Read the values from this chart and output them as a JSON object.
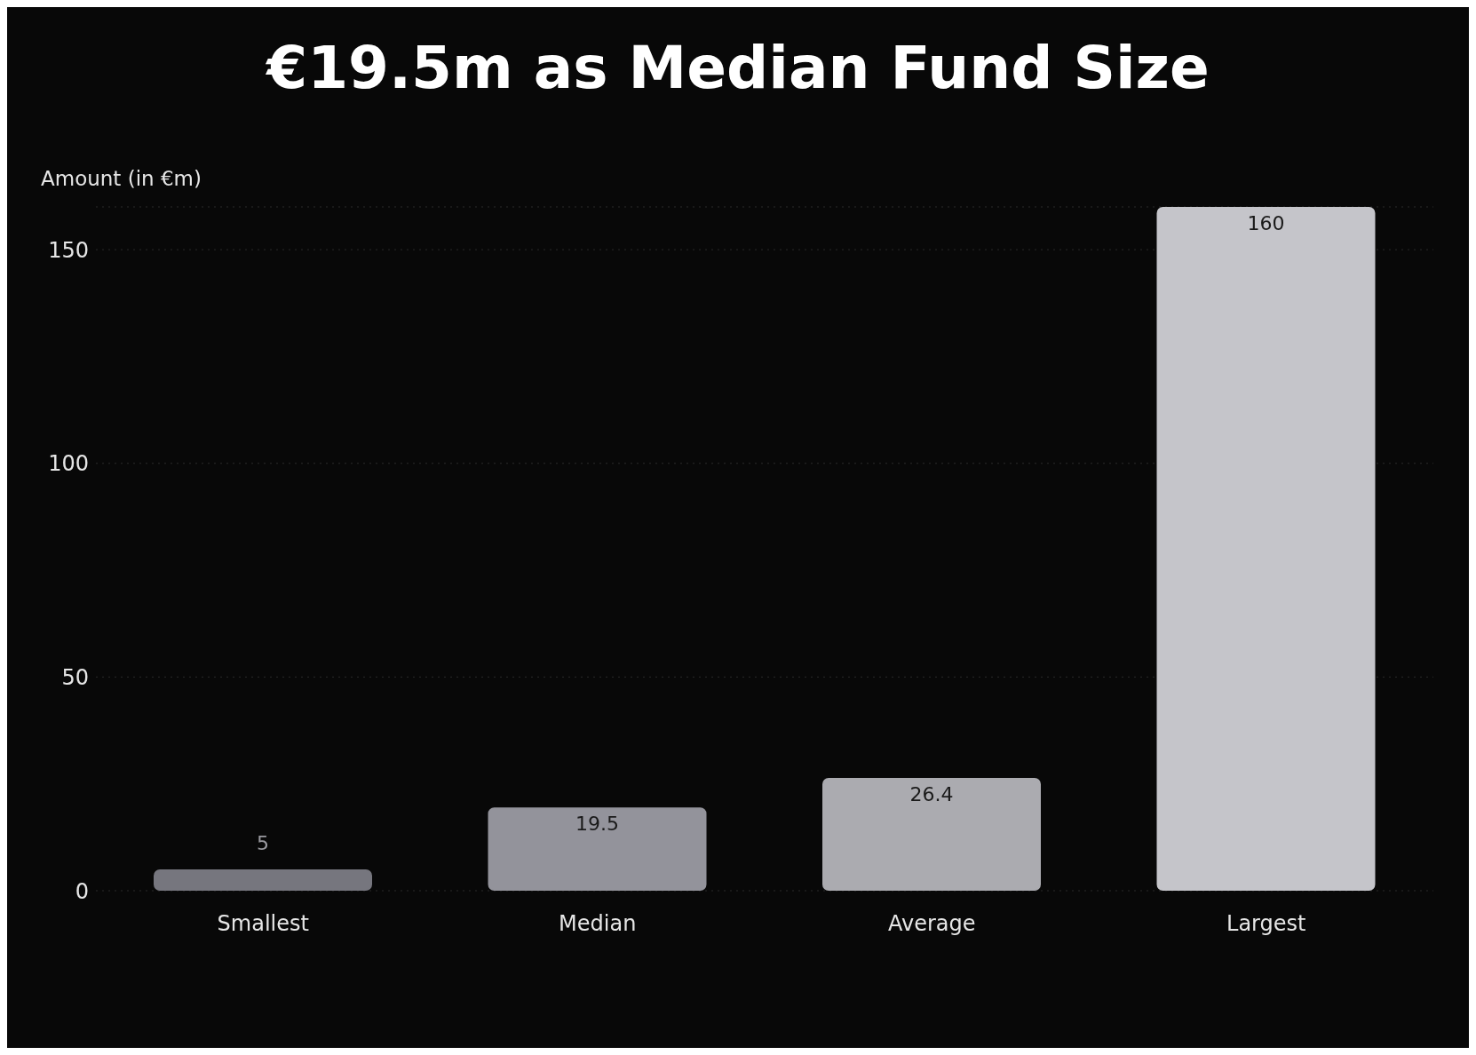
{
  "chart_data": {
    "type": "bar",
    "title": "€19.5m as Median Fund Size",
    "ylabel": "Amount (in €m)",
    "categories": [
      "Smallest",
      "Median",
      "Average",
      "Largest"
    ],
    "values": [
      5,
      19.5,
      26.4,
      160
    ],
    "colors": [
      "#76767e",
      "#93939b",
      "#ababb0",
      "#c5c5ca"
    ],
    "ylim": [
      0,
      160
    ],
    "yticks": [
      0,
      50,
      100,
      150
    ],
    "grid": "y",
    "data_labels": true
  }
}
